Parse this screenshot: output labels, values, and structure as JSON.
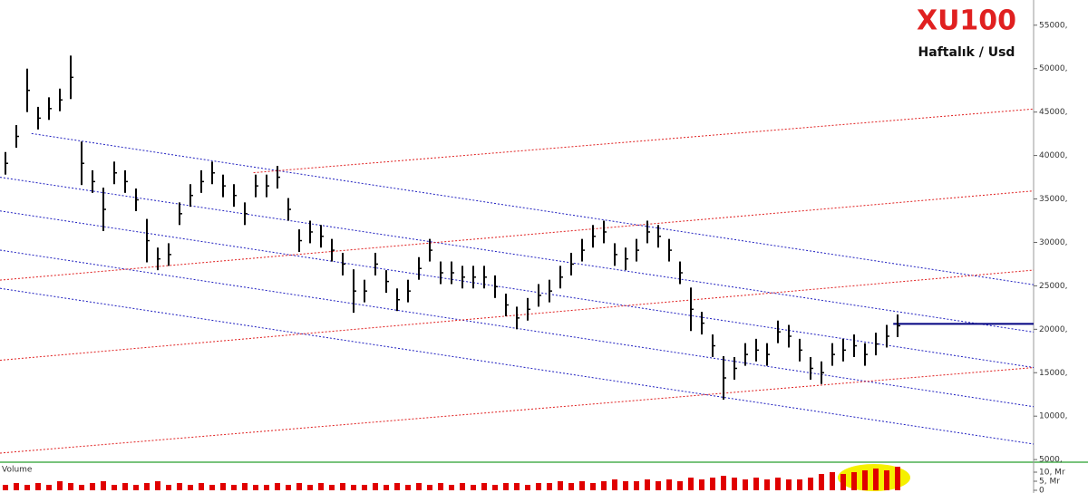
{
  "chart_data": [
    {
      "type": "ohlc",
      "title": "XU100",
      "subtitle": "Haftalık / Usd",
      "color": "#000000",
      "xlim": [
        -0.5,
        94.5
      ],
      "ylim": [
        4700,
        57900
      ],
      "yticks": [
        {
          "value": 5000,
          "label": "5000,"
        },
        {
          "value": 10000,
          "label": "10000,"
        },
        {
          "value": 15000,
          "label": "15000,"
        },
        {
          "value": 20000,
          "label": "20000,"
        },
        {
          "value": 25000,
          "label": "25000,"
        },
        {
          "value": 30000,
          "label": "30000,"
        },
        {
          "value": 35000,
          "label": "35000,"
        },
        {
          "value": 40000,
          "label": "40000,"
        },
        {
          "value": 45000,
          "label": "45000,"
        },
        {
          "value": 50000,
          "label": "50000,"
        },
        {
          "value": 55000,
          "label": "55000,"
        }
      ],
      "high": [
        40400,
        43500,
        50000,
        45600,
        46700,
        47700,
        51500,
        41600,
        38300,
        36300,
        39300,
        38300,
        36200,
        32700,
        29400,
        29900,
        34600,
        36700,
        38300,
        39300,
        37800,
        36700,
        34600,
        37800,
        37800,
        38800,
        35100,
        31500,
        32500,
        32000,
        30400,
        28800,
        26900,
        25700,
        28800,
        26800,
        24700,
        25700,
        28300,
        30400,
        27800,
        27800,
        27300,
        27300,
        27300,
        26200,
        24100,
        22600,
        23600,
        25200,
        25700,
        27300,
        28800,
        30400,
        32000,
        32500,
        29900,
        29400,
        30400,
        32500,
        32000,
        30400,
        27800,
        24800,
        22000,
        19400,
        16900,
        16800,
        18400,
        18900,
        18400,
        21000,
        20500,
        18900,
        16800,
        16300,
        18400,
        18900,
        19400,
        18400,
        19600,
        20500,
        21700
      ],
      "low": [
        37800,
        40900,
        45000,
        43000,
        44100,
        45100,
        46500,
        36600,
        35700,
        31300,
        36700,
        35700,
        33600,
        27700,
        26800,
        27300,
        32000,
        34100,
        35700,
        36700,
        35200,
        34100,
        32000,
        35200,
        35200,
        36200,
        32500,
        28900,
        29900,
        29400,
        27800,
        26200,
        21900,
        23100,
        26200,
        24200,
        22100,
        23100,
        25700,
        27800,
        25200,
        25200,
        24700,
        24700,
        24700,
        23600,
        21500,
        20000,
        21000,
        22600,
        23100,
        24700,
        26200,
        27800,
        29400,
        29900,
        27300,
        26800,
        27800,
        29900,
        29400,
        27800,
        25200,
        19800,
        19400,
        16800,
        11900,
        14200,
        15800,
        16300,
        15800,
        18400,
        17900,
        16300,
        14200,
        13700,
        15800,
        16300,
        16800,
        15800,
        17000,
        17900,
        19100
      ],
      "lines": [
        {
          "color": "#2020c0",
          "dashed": true,
          "x": [
            2.4,
            94.5
          ],
          "y": [
            42530,
            25130
          ]
        },
        {
          "color": "#2020c0",
          "dashed": true,
          "x": [
            -0.5,
            94.5
          ],
          "y": [
            37500,
            19680
          ]
        },
        {
          "color": "#2020c0",
          "dashed": true,
          "x": [
            -0.5,
            94.5
          ],
          "y": [
            33620,
            15600
          ]
        },
        {
          "color": "#2020c0",
          "dashed": true,
          "x": [
            -0.5,
            94.5
          ],
          "y": [
            29110,
            11090
          ]
        },
        {
          "color": "#2020c0",
          "dashed": true,
          "x": [
            -0.5,
            94.5
          ],
          "y": [
            24710,
            6790
          ]
        },
        {
          "color": "#e02020",
          "dashed": true,
          "x": [
            -0.5,
            94.5
          ],
          "y": [
            5744,
            15595
          ]
        },
        {
          "color": "#e02020",
          "dashed": true,
          "x": [
            -0.5,
            94.5
          ],
          "y": [
            16434,
            26809
          ]
        },
        {
          "color": "#e02020",
          "dashed": true,
          "x": [
            -0.5,
            94.5
          ],
          "y": [
            25656,
            35926
          ]
        },
        {
          "color": "#e02020",
          "dashed": true,
          "x": [
            22.8,
            94.5
          ],
          "y": [
            38022,
            45358
          ]
        },
        {
          "color": "#000080",
          "dashed": false,
          "x": [
            81.6,
            94.5
          ],
          "y": [
            20626,
            20626
          ]
        }
      ]
    },
    {
      "type": "bar",
      "title": "Volume",
      "color": "#e00000",
      "xlim": [
        -0.5,
        94.5
      ],
      "ylim": [
        0,
        14
      ],
      "yticks": [
        {
          "value": 10,
          "label": "10, Mr"
        },
        {
          "value": 5,
          "label": "5, Mr"
        },
        0
      ],
      "values": [
        3,
        4,
        3,
        4,
        3,
        5,
        4,
        3,
        4,
        5,
        3,
        4,
        3,
        4,
        5,
        3,
        4,
        3,
        4,
        3,
        4,
        3,
        4,
        3,
        3,
        4,
        3,
        4,
        3,
        4,
        3,
        4,
        3,
        3,
        4,
        3,
        4,
        3,
        4,
        3,
        4,
        3,
        4,
        3,
        4,
        3,
        4,
        4,
        3,
        4,
        4,
        5,
        4,
        5,
        4,
        5,
        6,
        5,
        5,
        6,
        5,
        6,
        5,
        7,
        6,
        7,
        8,
        7,
        6,
        7,
        6,
        7,
        6,
        6,
        7,
        9,
        10,
        9,
        10,
        11,
        12,
        11,
        13
      ]
    }
  ]
}
